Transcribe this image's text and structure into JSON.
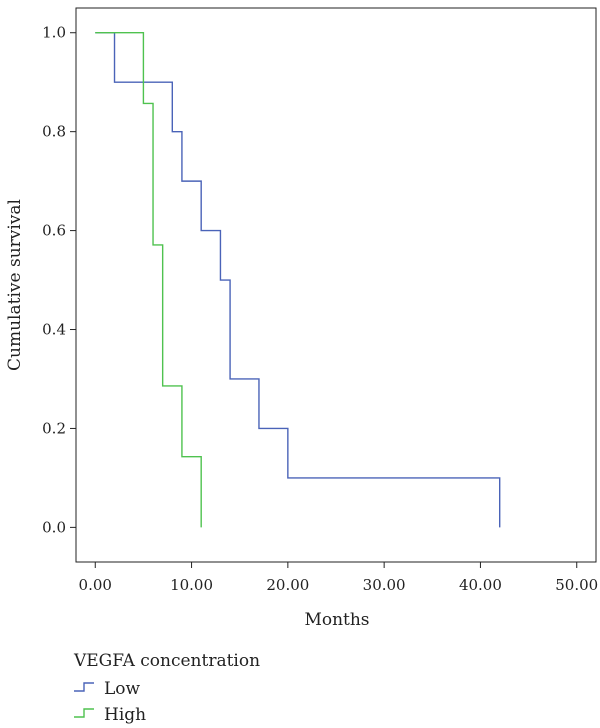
{
  "chart_data": {
    "type": "line",
    "step": true,
    "title": "",
    "xlabel": "Months",
    "ylabel": "Cumulative survival",
    "xlim": [
      -2,
      52
    ],
    "ylim": [
      -0.07,
      1.05
    ],
    "xticks": [
      0,
      10,
      20,
      30,
      40,
      50
    ],
    "xtick_labels": [
      "0.00",
      "10.00",
      "20.00",
      "30.00",
      "40.00",
      "50.00"
    ],
    "yticks": [
      0.0,
      0.2,
      0.4,
      0.6,
      0.8,
      1.0
    ],
    "ytick_labels": [
      "0.0",
      "0.2",
      "0.4",
      "0.6",
      "0.8",
      "1.0"
    ],
    "grid": false,
    "legend": {
      "title": "VEGFA concentration",
      "placement": "bottom-left"
    },
    "series": [
      {
        "name": "Low",
        "color": "#4a63b8",
        "x": [
          0,
          2,
          8,
          9,
          11,
          13,
          14,
          17,
          20,
          42
        ],
        "y": [
          1.0,
          0.9,
          0.8,
          0.7,
          0.6,
          0.5,
          0.3,
          0.2,
          0.1,
          0.0
        ]
      },
      {
        "name": "High",
        "color": "#4fc24f",
        "x": [
          0,
          5,
          6,
          7,
          9,
          11
        ],
        "y": [
          1.0,
          0.857,
          0.571,
          0.286,
          0.143,
          0.0
        ]
      }
    ]
  }
}
